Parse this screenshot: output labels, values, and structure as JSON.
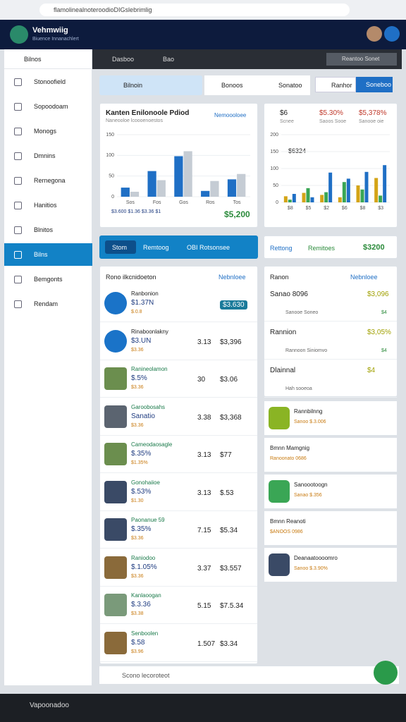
{
  "browser": {
    "url": "flamolinealnoteroodioDIGslebrimlig"
  },
  "header": {
    "title": "Vehmwiig",
    "subtitle": "Biuence Innanachlert"
  },
  "sidebar": {
    "title": "Bilnos",
    "items": [
      "Stonoofield",
      "Sopoodoam",
      "Monogs",
      "Dmnins",
      "Rernegona",
      "Hanitios",
      "Blnitos",
      "Bilns",
      "Bemgonts",
      "Rendam"
    ],
    "active": 7
  },
  "topbar": {
    "tabs": [
      "Dasboo",
      "Bao"
    ],
    "button": "Reantoo Sonet"
  },
  "tabs": {
    "items": [
      "Bilnoin",
      "Bonoos",
      "Sonatoo"
    ],
    "search": "Ranhor",
    "button": "Soneboo"
  },
  "charts": [
    {
      "type": "bar",
      "title": "Kanten Enilonoole Pdiod",
      "subtitle": "Naneooloe lcoooenoestos",
      "link": "Nemoooloee",
      "categories": [
        "Sos",
        "Fos",
        "Gos",
        "Ros",
        "Tos"
      ],
      "series": [
        {
          "color": "#1f6fc5",
          "values": [
            22,
            62,
            98,
            14,
            42
          ]
        },
        {
          "color": "#c5ccd4",
          "values": [
            12,
            40,
            110,
            38,
            55
          ]
        }
      ],
      "ylim": [
        0,
        150
      ],
      "yticks": [
        0,
        50,
        100,
        150
      ],
      "footer": [
        "$3.600",
        "$1.36",
        "$3.36",
        "$1"
      ],
      "total": "$5,200"
    },
    {
      "type": "bar",
      "stats": [
        {
          "value": "$6",
          "label": "Scnee"
        },
        {
          "value": "$5.30%",
          "label": "Saoos Sooe"
        },
        {
          "value": "$5,378%",
          "label": "Sanooe oie"
        }
      ],
      "note": "$6324",
      "categories": [
        "$8",
        "$5",
        "$2",
        "$6",
        "$8",
        "$3"
      ],
      "series": [
        {
          "color": "#d4a417",
          "values": [
            18,
            28,
            22,
            15,
            50,
            72
          ]
        },
        {
          "color": "#3aa655",
          "values": [
            8,
            42,
            30,
            60,
            38,
            20
          ]
        },
        {
          "color": "#1f6fc5",
          "values": [
            25,
            15,
            88,
            70,
            90,
            110
          ]
        }
      ],
      "ylim": [
        0,
        200
      ],
      "yticks": [
        0,
        50,
        100,
        150,
        200
      ]
    }
  ],
  "banner": {
    "items": [
      "Stom",
      "Remtoog",
      "OBI Rotsonsee"
    ]
  },
  "summary": {
    "items": [
      "Rettong",
      "Remitoes"
    ],
    "value": "$3200"
  },
  "list": {
    "title": "Rono ilkcnidoeton",
    "link": "Nebnloee",
    "rows": [
      {
        "name": "Ranbonion",
        "sub": "$1.37N",
        "note": "$.0.8",
        "mid": "",
        "value": "$3.630",
        "avatar": "#1a73c8"
      },
      {
        "name": "Rinaboonlakny",
        "sub": "$3.UN",
        "note": "$3.36",
        "mid": "3.13",
        "value": "$3,396",
        "avatar": "#1a73c8"
      },
      {
        "name": "Ranineolamon",
        "sub": "$.5%",
        "note": "$3.36",
        "mid": "30",
        "value": "$3.06",
        "avatar": "#6b8e4e"
      },
      {
        "name": "Garoobosahs",
        "sub": "Sanatio",
        "note": "$3.36",
        "mid": "3.38",
        "value": "$3,368",
        "avatar": "#5b6470"
      },
      {
        "name": "Cameodaosagle",
        "sub": "$.35%",
        "note": "$1.35%",
        "mid": "3.13",
        "value": "$77",
        "avatar": "#6b8e4e"
      },
      {
        "name": "Gonohaiioe",
        "sub": "$.53%",
        "note": "$1.30",
        "mid": "3.13",
        "value": "$.53",
        "avatar": "#3a4a66"
      },
      {
        "name": "Paonanue 59",
        "sub": "$.35%",
        "note": "$3.36",
        "mid": "7.15",
        "value": "$5.34",
        "avatar": "#3a4a66"
      },
      {
        "name": "Raniodoo",
        "sub": "$.1.05%",
        "note": "$3.36",
        "mid": "3.37",
        "value": "$3.557",
        "avatar": "#8a6a3a"
      },
      {
        "name": "Kanlaoogan",
        "sub": "$.3.36",
        "note": "$3.38",
        "mid": "5.15",
        "value": "$7.5.34",
        "avatar": "#7a9a7a"
      },
      {
        "name": "Senboolen",
        "sub": "$.58",
        "note": "$3.96",
        "mid": "1.507",
        "value": "$3.34",
        "avatar": "#8a6a3a"
      }
    ]
  },
  "panel": {
    "title": "Ranon",
    "link": "Nebnloee",
    "items": [
      {
        "name": "Sanao 8096",
        "sub": "Sanooe Soneo",
        "value": "$3,096",
        "change": "$4"
      },
      {
        "name": "Rannion",
        "sub": "Rannoon Siniomvo",
        "value": "$3,05%",
        "change": "$4"
      },
      {
        "name": "Dlainnal",
        "sub": "Hah sooeoa",
        "value": "$4",
        "change": ""
      }
    ]
  },
  "cards": [
    {
      "name": "Rannbilnng",
      "sub": "Sanoo $.3.006",
      "avatar": "#8ab424"
    },
    {
      "name": "Bmnn Mamgnig",
      "sub": "Ranoonato 0686",
      "avatar": ""
    },
    {
      "name": "Sanoootoogn",
      "sub": "Sanao $.356",
      "avatar": "#3aa655"
    },
    {
      "name": "Bmnn Reanoti",
      "sub": "$ANOOS 0986",
      "avatar": ""
    },
    {
      "name": "Deanaatoooomro",
      "sub": "Sanoo $.3.90%",
      "avatar": "#3a4a66"
    }
  ],
  "search": {
    "placeholder": "Scono lecoroteot"
  },
  "taskbar": {
    "title": "Vapoonadoo"
  }
}
